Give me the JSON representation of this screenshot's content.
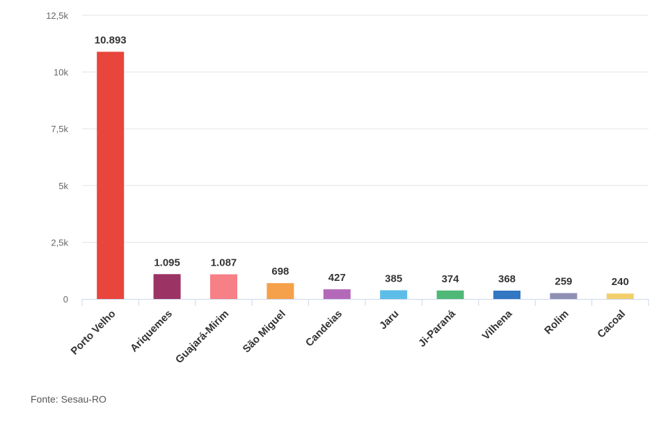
{
  "chart_data": {
    "type": "bar",
    "categories": [
      "Porto Velho",
      "Ariquemes",
      "Guajará-Mirim",
      "São Miguel",
      "Candeias",
      "Jaru",
      "Ji-Paraná",
      "Vilhena",
      "Rolim",
      "Cacoal"
    ],
    "values": [
      10893,
      1095,
      1087,
      698,
      427,
      385,
      374,
      368,
      259,
      240
    ],
    "data_labels": [
      "10.893",
      "1.095",
      "1.087",
      "698",
      "427",
      "385",
      "374",
      "368",
      "259",
      "240"
    ],
    "colors": [
      "#e8453c",
      "#9b3465",
      "#f77f86",
      "#f5a04a",
      "#b469b8",
      "#5dbde8",
      "#4fb877",
      "#3376c2",
      "#8f8fb5",
      "#f2cf6c"
    ],
    "ylim": [
      0,
      12500
    ],
    "yticks": [
      0,
      2500,
      5000,
      7500,
      10000,
      12500
    ],
    "ytick_labels": [
      "0",
      "2,5k",
      "5k",
      "7,5k",
      "10k",
      "12,5k"
    ],
    "grid": true,
    "title": "",
    "xlabel": "",
    "ylabel": ""
  },
  "source_text": "Fonte: Sesau-RO"
}
